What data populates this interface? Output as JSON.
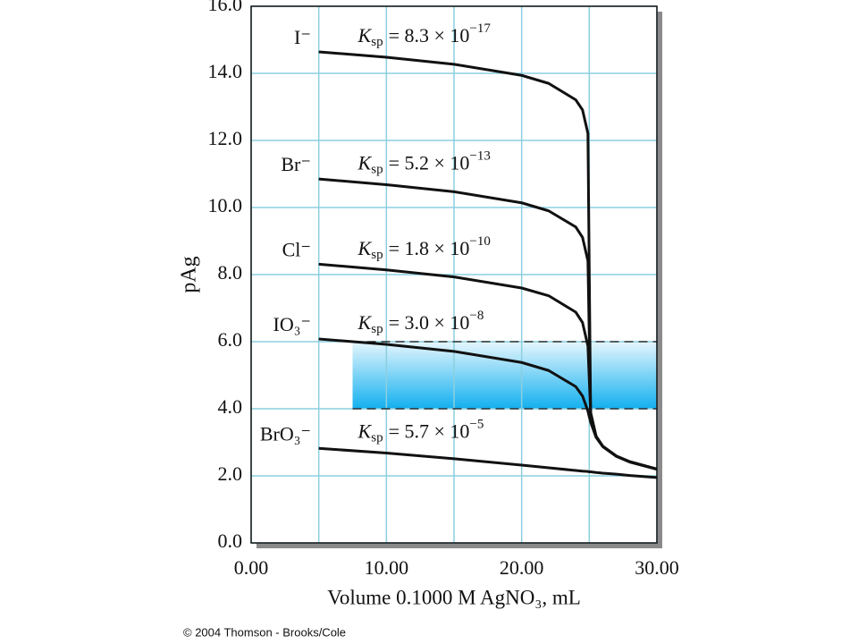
{
  "chart_data": {
    "type": "line",
    "y_label": "pAg",
    "x_label": "Volume 0.1000 M AgNO₃, mL",
    "copyright": "© 2004 Thomson - Brooks/Cole",
    "x": [
      5,
      10,
      15,
      20,
      22,
      24,
      24.5,
      24.9,
      25,
      25.1,
      25.5,
      26,
      27,
      28,
      30
    ],
    "series": [
      {
        "name": "I⁻",
        "color": "#111111",
        "ksp": {
          "k": "K",
          "sub": "sp",
          "text": "= 8.3 × 10",
          "sup": "−17"
        },
        "values": [
          14.64,
          14.48,
          14.27,
          13.94,
          13.7,
          13.21,
          12.91,
          12.21,
          8.04,
          3.88,
          3.18,
          2.88,
          2.59,
          2.42,
          2.2
        ]
      },
      {
        "name": "Br⁻",
        "color": "#111111",
        "ksp": {
          "k": "K",
          "sub": "sp",
          "text": "= 5.2 × 10",
          "sup": "−13"
        },
        "values": [
          10.85,
          10.68,
          10.47,
          10.14,
          9.9,
          9.42,
          9.11,
          8.41,
          6.14,
          3.88,
          3.18,
          2.88,
          2.59,
          2.42,
          2.2
        ]
      },
      {
        "name": "Cl⁻",
        "color": "#111111",
        "ksp": {
          "k": "K",
          "sub": "sp",
          "text": "= 1.8 × 10",
          "sup": "−10"
        },
        "values": [
          8.31,
          8.14,
          7.93,
          7.6,
          7.37,
          6.88,
          6.57,
          5.87,
          4.87,
          3.88,
          3.18,
          2.88,
          2.59,
          2.42,
          2.2
        ]
      },
      {
        "name": "IO₃⁻",
        "color": "#111111",
        "ksp": {
          "k": "K",
          "sub": "sp",
          "text": "= 3.0 × 10",
          "sup": "−8"
        },
        "values": [
          6.08,
          5.92,
          5.71,
          5.38,
          5.14,
          4.66,
          4.38,
          3.93,
          3.76,
          3.6,
          3.15,
          2.87,
          2.58,
          2.41,
          2.2
        ]
      },
      {
        "name": "BrO₃⁻",
        "color": "#111111",
        "ksp": {
          "k": "K",
          "sub": "sp",
          "text": "= 5.7 × 10",
          "sup": "−5"
        },
        "values": [
          2.82,
          2.68,
          2.51,
          2.32,
          2.24,
          2.16,
          2.14,
          2.13,
          2.12,
          2.12,
          2.1,
          2.08,
          2.05,
          2.01,
          1.95
        ]
      }
    ],
    "shaded_band": {
      "x": [
        7.5,
        30
      ],
      "y": [
        4,
        6
      ]
    },
    "xlim": [
      0,
      30
    ],
    "ylim": [
      0,
      16
    ],
    "xticks": [
      {
        "value": 0,
        "label": "0.00"
      },
      {
        "value": 10,
        "label": "10.00"
      },
      {
        "value": 20,
        "label": "20.00"
      },
      {
        "value": 30,
        "label": "30.00"
      }
    ],
    "xminor": [
      5,
      15,
      25
    ],
    "yticks": [
      {
        "value": 0,
        "label": "0.0"
      },
      {
        "value": 2,
        "label": "2.0"
      },
      {
        "value": 4,
        "label": "4.0"
      },
      {
        "value": 6,
        "label": "6.0"
      },
      {
        "value": 8,
        "label": "8.0"
      },
      {
        "value": 10,
        "label": "10.0"
      },
      {
        "value": 12,
        "label": "12.0"
      },
      {
        "value": 14,
        "label": "14.0"
      },
      {
        "value": 16,
        "label": "16.0"
      }
    ],
    "grid": true,
    "grid_color": "#8ccfe0"
  }
}
